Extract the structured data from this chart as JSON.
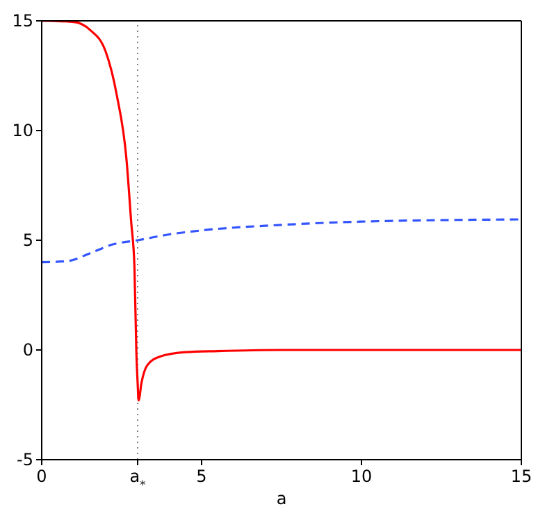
{
  "chart_data": {
    "type": "line",
    "xlabel": "a",
    "series": [
      {
        "color": "#ff0000",
        "line_style": "solid",
        "x": [
          0,
          1,
          1.5,
          2,
          2.35,
          2.65,
          2.8,
          2.9,
          2.96,
          3,
          3.03,
          3.12,
          3.3,
          3.7,
          4.5,
          5.5,
          7.5,
          10,
          15
        ],
        "values": [
          15,
          14.95,
          14.6,
          13.6,
          11.6,
          8.7,
          5.8,
          3.8,
          -0.1,
          -1.5,
          -2.3,
          -1.5,
          -0.7,
          -0.3,
          -0.1,
          -0.05,
          0,
          0,
          0
        ]
      },
      {
        "color": "#3355ff",
        "line_style": "dashed",
        "x": [
          0,
          0.8,
          1.5,
          2.2,
          3,
          4,
          5,
          7.5,
          10,
          15
        ],
        "values": [
          4,
          4.05,
          4.4,
          4.8,
          5,
          5.27,
          5.45,
          5.7,
          5.85,
          5.95
        ]
      }
    ],
    "xlim": [
      0,
      15
    ],
    "xticks": [
      0,
      {
        "value": 3,
        "label": "a$_{*}$"
      },
      5,
      10,
      15
    ],
    "ylim": [
      -5,
      15
    ],
    "yticks": [
      -5,
      0,
      5,
      10,
      15
    ],
    "ref_lines": [
      {
        "axis": "x",
        "value": 3,
        "color": "#808080",
        "line_style": "dotted"
      }
    ]
  }
}
